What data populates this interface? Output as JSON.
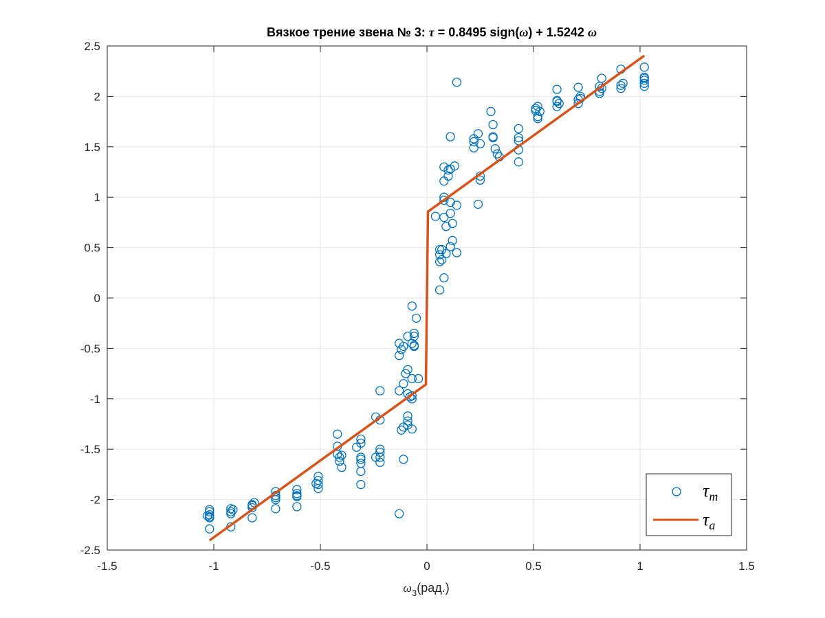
{
  "chart_data": {
    "type": "scatter",
    "title_parts": {
      "prefix": "Вязкое трение звена № 3: ",
      "tau": "τ",
      "eq": " = 0.8495 sign(",
      "omega1": "ω",
      "mid": ") +  1.5242 ",
      "omega2": "ω"
    },
    "xlabel": {
      "omega": "ω",
      "sub": "3",
      "text": "(рад.)"
    },
    "ylabel": "",
    "xlim": [
      -1.5,
      1.5
    ],
    "ylim": [
      -2.5,
      2.5
    ],
    "xticks": [
      -1.5,
      -1,
      -0.5,
      0,
      0.5,
      1,
      1.5
    ],
    "yticks": [
      -2.5,
      -2,
      -1.5,
      -1,
      -0.5,
      0,
      0.5,
      1,
      1.5,
      2,
      2.5
    ],
    "grid": true,
    "legend_position": "bottom-right",
    "colors": {
      "measured": "#0072BD",
      "approx": "#D95319",
      "grid": "#e6e6e6",
      "axis": "#262626"
    },
    "series": [
      {
        "name": "τm",
        "legend": {
          "symbol": "τ",
          "sub": "m"
        },
        "type": "scatter",
        "marker": "circle-open",
        "points": [
          [
            -1.02,
            -2.29
          ],
          [
            -1.02,
            -2.17
          ],
          [
            -1.02,
            -2.15
          ],
          [
            -1.02,
            -2.12
          ],
          [
            -1.02,
            -2.1
          ],
          [
            -1.03,
            -2.16
          ],
          [
            -1.02,
            -2.18
          ],
          [
            -0.92,
            -2.27
          ],
          [
            -0.92,
            -2.14
          ],
          [
            -0.92,
            -2.12
          ],
          [
            -0.91,
            -2.1
          ],
          [
            -0.92,
            -2.09
          ],
          [
            -0.82,
            -2.18
          ],
          [
            -0.82,
            -2.08
          ],
          [
            -0.82,
            -2.05
          ],
          [
            -0.81,
            -2.03
          ],
          [
            -0.82,
            -2.06
          ],
          [
            -0.71,
            -2.09
          ],
          [
            -0.71,
            -2.0
          ],
          [
            -0.71,
            -1.96
          ],
          [
            -0.71,
            -1.92
          ],
          [
            -0.71,
            -1.98
          ],
          [
            -0.61,
            -2.07
          ],
          [
            -0.61,
            -1.97
          ],
          [
            -0.61,
            -1.94
          ],
          [
            -0.61,
            -1.9
          ],
          [
            -0.61,
            -1.96
          ],
          [
            -0.51,
            -1.89
          ],
          [
            -0.51,
            -1.85
          ],
          [
            -0.51,
            -1.81
          ],
          [
            -0.51,
            -1.77
          ],
          [
            -0.52,
            -1.84
          ],
          [
            -0.42,
            -1.35
          ],
          [
            -0.42,
            -1.47
          ],
          [
            -0.42,
            -1.55
          ],
          [
            -0.41,
            -1.58
          ],
          [
            -0.41,
            -1.62
          ],
          [
            -0.4,
            -1.68
          ],
          [
            -0.4,
            -1.56
          ],
          [
            -0.33,
            -1.48
          ],
          [
            -0.31,
            -1.4
          ],
          [
            -0.31,
            -1.44
          ],
          [
            -0.31,
            -1.58
          ],
          [
            -0.31,
            -1.6
          ],
          [
            -0.31,
            -1.64
          ],
          [
            -0.31,
            -1.72
          ],
          [
            -0.31,
            -1.85
          ],
          [
            -0.24,
            -1.18
          ],
          [
            -0.22,
            -1.21
          ],
          [
            -0.22,
            -0.92
          ],
          [
            -0.22,
            -1.5
          ],
          [
            -0.22,
            -1.53
          ],
          [
            -0.22,
            -1.58
          ],
          [
            -0.22,
            -1.63
          ],
          [
            -0.24,
            -1.58
          ],
          [
            -0.13,
            -2.14
          ],
          [
            -0.11,
            -1.6
          ],
          [
            -0.12,
            -1.31
          ],
          [
            -0.11,
            -1.28
          ],
          [
            -0.09,
            -1.26
          ],
          [
            -0.09,
            -1.22
          ],
          [
            -0.09,
            -1.17
          ],
          [
            -0.07,
            -1.3
          ],
          [
            -0.07,
            -1.0
          ],
          [
            -0.08,
            -0.98
          ],
          [
            -0.09,
            -0.95
          ],
          [
            -0.11,
            -0.85
          ],
          [
            -0.1,
            -0.75
          ],
          [
            -0.09,
            -0.71
          ],
          [
            -0.07,
            -0.8
          ],
          [
            -0.04,
            -0.8
          ],
          [
            -0.13,
            -0.92
          ],
          [
            -0.13,
            -0.57
          ],
          [
            -0.12,
            -0.51
          ],
          [
            -0.13,
            -0.45
          ],
          [
            -0.09,
            -0.38
          ],
          [
            -0.07,
            -0.45
          ],
          [
            -0.06,
            -0.47
          ],
          [
            -0.06,
            -0.48
          ],
          [
            -0.06,
            -0.38
          ],
          [
            -0.06,
            -0.35
          ],
          [
            -0.05,
            -0.2
          ],
          [
            -0.07,
            -0.08
          ],
          [
            -0.07,
            -0.97
          ],
          [
            -0.11,
            -0.48
          ],
          [
            0.06,
            0.08
          ],
          [
            0.08,
            0.2
          ],
          [
            0.07,
            0.38
          ],
          [
            0.06,
            0.36
          ],
          [
            0.06,
            0.43
          ],
          [
            0.06,
            0.48
          ],
          [
            0.07,
            0.48
          ],
          [
            0.09,
            0.44
          ],
          [
            0.11,
            0.51
          ],
          [
            0.12,
            0.57
          ],
          [
            0.14,
            0.45
          ],
          [
            0.09,
            0.71
          ],
          [
            0.12,
            0.74
          ],
          [
            0.08,
            0.8
          ],
          [
            0.04,
            0.81
          ],
          [
            0.11,
            0.84
          ],
          [
            0.14,
            0.92
          ],
          [
            0.11,
            0.95
          ],
          [
            0.08,
            0.97
          ],
          [
            0.08,
            1.0
          ],
          [
            0.08,
            1.16
          ],
          [
            0.1,
            1.21
          ],
          [
            0.1,
            1.27
          ],
          [
            0.11,
            1.28
          ],
          [
            0.13,
            1.31
          ],
          [
            0.08,
            1.3
          ],
          [
            0.11,
            1.6
          ],
          [
            0.14,
            2.14
          ],
          [
            0.24,
            0.93
          ],
          [
            0.25,
            1.17
          ],
          [
            0.25,
            1.21
          ],
          [
            0.22,
            1.49
          ],
          [
            0.22,
            1.55
          ],
          [
            0.22,
            1.58
          ],
          [
            0.25,
            1.53
          ],
          [
            0.24,
            1.63
          ],
          [
            0.32,
            1.48
          ],
          [
            0.33,
            1.43
          ],
          [
            0.34,
            1.4
          ],
          [
            0.31,
            1.59
          ],
          [
            0.31,
            1.6
          ],
          [
            0.31,
            1.72
          ],
          [
            0.3,
            1.85
          ],
          [
            0.43,
            1.35
          ],
          [
            0.43,
            1.47
          ],
          [
            0.43,
            1.56
          ],
          [
            0.43,
            1.59
          ],
          [
            0.43,
            1.68
          ],
          [
            0.51,
            1.86
          ],
          [
            0.51,
            1.88
          ],
          [
            0.52,
            1.9
          ],
          [
            0.52,
            1.78
          ],
          [
            0.52,
            1.8
          ],
          [
            0.53,
            1.85
          ],
          [
            0.61,
            1.9
          ],
          [
            0.62,
            1.93
          ],
          [
            0.61,
            1.95
          ],
          [
            0.61,
            1.96
          ],
          [
            0.61,
            2.07
          ],
          [
            0.71,
            1.93
          ],
          [
            0.71,
            1.97
          ],
          [
            0.72,
            1.98
          ],
          [
            0.72,
            2.0
          ],
          [
            0.71,
            2.09
          ],
          [
            0.81,
            2.03
          ],
          [
            0.81,
            2.05
          ],
          [
            0.82,
            2.08
          ],
          [
            0.81,
            2.1
          ],
          [
            0.82,
            2.18
          ],
          [
            0.91,
            2.08
          ],
          [
            0.91,
            2.11
          ],
          [
            0.92,
            2.13
          ],
          [
            0.91,
            2.27
          ],
          [
            1.02,
            2.1
          ],
          [
            1.02,
            2.13
          ],
          [
            1.02,
            2.16
          ],
          [
            1.02,
            2.18
          ],
          [
            1.02,
            2.19
          ],
          [
            1.02,
            2.29
          ]
        ]
      },
      {
        "name": "τa",
        "legend": {
          "symbol": "τ",
          "sub": "a"
        },
        "type": "line",
        "points": [
          [
            -1.02,
            -2.4043
          ],
          [
            -0.005,
            -0.8571
          ],
          [
            0.005,
            0.8571
          ],
          [
            1.02,
            2.4043
          ]
        ]
      }
    ]
  }
}
